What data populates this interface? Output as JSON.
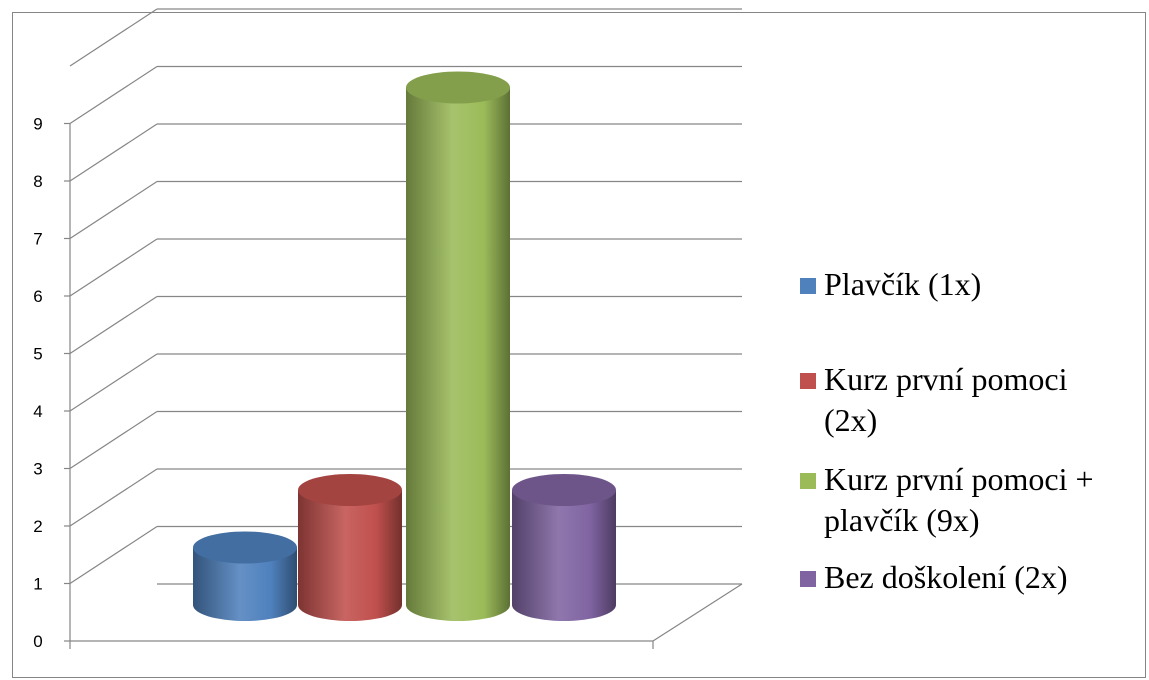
{
  "chart_data": {
    "type": "bar",
    "style": "3d-cylinder",
    "categories": [
      "Plavčík (1x)",
      "Kurz první pomoci (2x)",
      "Kurz první pomoci + plavčík (9x)",
      "Bez doškolení (2x)"
    ],
    "values": [
      1,
      2,
      9,
      2
    ],
    "colors": [
      "#4F81BD",
      "#C0504D",
      "#9BBB59",
      "#8064A2"
    ],
    "ylim": [
      0,
      9
    ],
    "yticks": [
      "0",
      "1",
      "2",
      "3",
      "4",
      "5",
      "6",
      "7",
      "8",
      "9"
    ],
    "grid": true,
    "legend": {
      "placement": "right",
      "entries": [
        {
          "lines": [
            "Plavčík (1x)"
          ]
        },
        {
          "lines": [
            "Kurz první pomoci",
            "(2x)"
          ]
        },
        {
          "lines": [
            "Kurz první pomoci +",
            "plavčík (9x)"
          ]
        },
        {
          "lines": [
            "Bez doškolení (2x)"
          ]
        }
      ]
    }
  }
}
